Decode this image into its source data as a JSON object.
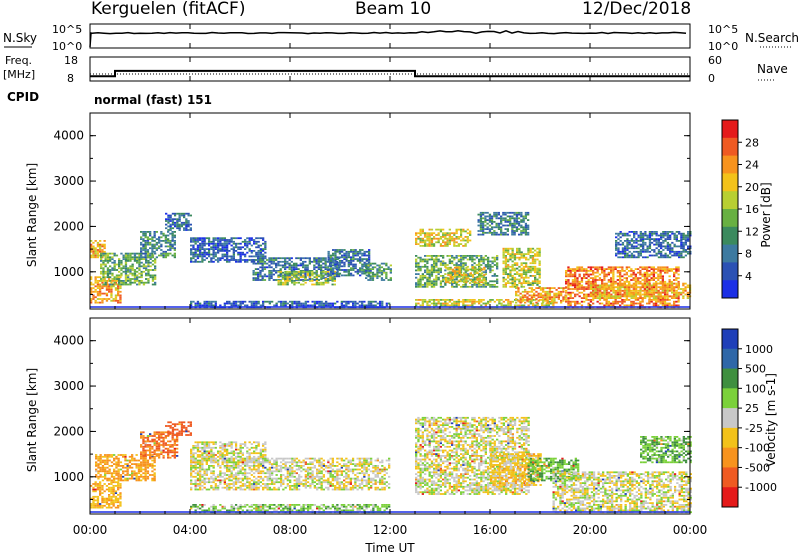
{
  "header": {
    "station": "Kerguelen (fitACF)",
    "beam": "Beam 10",
    "date": "12/Dec/2018"
  },
  "noise_panel": {
    "left_label": "N.Sky",
    "left_ticks": [
      "10^5",
      "10^0"
    ],
    "right_ticks": [
      "10^5",
      "10^0"
    ],
    "right_label": "N.Search"
  },
  "freq_panel": {
    "left_label_1": "Freq.",
    "left_label_2": "[MHz]",
    "left_ticks": [
      "18",
      "8"
    ],
    "right_ticks": [
      "60",
      "0"
    ],
    "right_label": "Nave",
    "cpid_label": "CPID",
    "cpid_text": "normal (fast) 151",
    "freq_segments": [
      {
        "start_h": 0.0,
        "end_h": 1.0,
        "mhz": 10
      },
      {
        "start_h": 1.0,
        "end_h": 13.0,
        "mhz": 12.2
      },
      {
        "start_h": 13.0,
        "end_h": 24.0,
        "mhz": 10
      }
    ],
    "nave_level": 30
  },
  "time_axis": {
    "label": "Time UT",
    "ticks": [
      "00:00",
      "04:00",
      "08:00",
      "12:00",
      "16:00",
      "20:00",
      "00:00"
    ]
  },
  "power_panel": {
    "ylabel": "Slant Range [km]",
    "yticks": [
      "4000",
      "3000",
      "2000",
      "1000"
    ],
    "colorbar_label": "Power [dB]",
    "colorbar_ticks": [
      "28",
      "24",
      "20",
      "16",
      "12",
      "8",
      "4"
    ],
    "colors": [
      "#1b2fe6",
      "#2b51b4",
      "#3d7aa0",
      "#3b8a5e",
      "#68b042",
      "#b8cf32",
      "#f3c21a",
      "#f7931e",
      "#ef5a22",
      "#e51a1a"
    ]
  },
  "velocity_panel": {
    "ylabel": "Slant Range [km]",
    "yticks": [
      "4000",
      "3000",
      "2000",
      "1000"
    ],
    "colorbar_label": "Velocity [m s-1]",
    "colorbar_ticks": [
      "1000",
      "500",
      "100",
      "25",
      "-25",
      "-100",
      "-500",
      "-1000"
    ],
    "colors": [
      "#1f3fb8",
      "#2f67a8",
      "#3f8f3f",
      "#7bd13a",
      "#c8c8c8",
      "#f3c21a",
      "#f7931e",
      "#ef5a22",
      "#e51a1a"
    ]
  },
  "chart_data": {
    "type": "heatmap",
    "x_range_hours": [
      0,
      24
    ],
    "y_range_km": [
      180,
      4500
    ],
    "power_regions": [
      {
        "t0": 0.0,
        "t1": 1.2,
        "r0": 300,
        "r1": 900,
        "db": 22
      },
      {
        "t0": 0.0,
        "t1": 0.6,
        "r0": 1300,
        "r1": 1700,
        "db": 22
      },
      {
        "t0": 0.4,
        "t1": 2.6,
        "r0": 700,
        "r1": 1400,
        "db": 13
      },
      {
        "t0": 2.0,
        "t1": 3.4,
        "r0": 1300,
        "r1": 1900,
        "db": 10
      },
      {
        "t0": 3.0,
        "t1": 4.0,
        "r0": 1900,
        "r1": 2300,
        "db": 7
      },
      {
        "t0": 4.0,
        "t1": 12.0,
        "r0": 200,
        "r1": 350,
        "db": 6
      },
      {
        "t0": 4.0,
        "t1": 7.0,
        "r0": 1200,
        "r1": 1750,
        "db": 6
      },
      {
        "t0": 6.5,
        "t1": 10.0,
        "r0": 800,
        "r1": 1300,
        "db": 8
      },
      {
        "t0": 7.5,
        "t1": 9.8,
        "r0": 700,
        "r1": 1000,
        "db": 16
      },
      {
        "t0": 9.5,
        "t1": 11.2,
        "r0": 900,
        "r1": 1500,
        "db": 8
      },
      {
        "t0": 11.0,
        "t1": 12.0,
        "r0": 800,
        "r1": 1200,
        "db": 11
      },
      {
        "t0": 13.0,
        "t1": 15.2,
        "r0": 1550,
        "r1": 1950,
        "db": 19
      },
      {
        "t0": 13.0,
        "t1": 16.3,
        "r0": 650,
        "r1": 1350,
        "db": 13
      },
      {
        "t0": 14.2,
        "t1": 15.8,
        "r0": 750,
        "r1": 1100,
        "db": 19
      },
      {
        "t0": 15.5,
        "t1": 17.5,
        "r0": 1800,
        "r1": 2300,
        "db": 9
      },
      {
        "t0": 16.5,
        "t1": 18.0,
        "r0": 650,
        "r1": 1500,
        "db": 17
      },
      {
        "t0": 13.0,
        "t1": 18.5,
        "r0": 200,
        "r1": 400,
        "db": 18
      },
      {
        "t0": 17.0,
        "t1": 19.0,
        "r0": 300,
        "r1": 650,
        "db": 22
      },
      {
        "t0": 19.0,
        "t1": 23.5,
        "r0": 200,
        "r1": 1100,
        "db": 24
      },
      {
        "t0": 20.0,
        "t1": 24.0,
        "r0": 400,
        "r1": 750,
        "db": 21
      },
      {
        "t0": 21.0,
        "t1": 24.0,
        "r0": 1300,
        "r1": 1900,
        "db": 7
      }
    ],
    "velocity_regions": [
      {
        "t0": 0.0,
        "t1": 1.2,
        "r0": 300,
        "r1": 900,
        "v": -80
      },
      {
        "t0": 0.2,
        "t1": 2.6,
        "r0": 900,
        "r1": 1500,
        "v": -120
      },
      {
        "t0": 2.0,
        "t1": 3.5,
        "r0": 1400,
        "r1": 2000,
        "v": -300
      },
      {
        "t0": 3.0,
        "t1": 4.0,
        "r0": 1900,
        "r1": 2200,
        "v": -400
      },
      {
        "t0": 4.0,
        "t1": 12.0,
        "r0": 700,
        "r1": 1400,
        "v": 0
      },
      {
        "t0": 4.0,
        "t1": 7.0,
        "r0": 1300,
        "r1": 1750,
        "v": 0
      },
      {
        "t0": 4.0,
        "t1": 12.0,
        "r0": 200,
        "r1": 400,
        "v": 60
      },
      {
        "t0": 13.0,
        "t1": 17.5,
        "r0": 600,
        "r1": 2300,
        "v": 0
      },
      {
        "t0": 16.0,
        "t1": 18.0,
        "r0": 800,
        "r1": 1500,
        "v": -60
      },
      {
        "t0": 17.5,
        "t1": 19.5,
        "r0": 900,
        "r1": 1400,
        "v": 80
      },
      {
        "t0": 18.5,
        "t1": 24.0,
        "r0": 200,
        "r1": 1100,
        "v": 0
      },
      {
        "t0": 22.0,
        "t1": 24.0,
        "r0": 1300,
        "r1": 1900,
        "v": 80
      }
    ]
  }
}
